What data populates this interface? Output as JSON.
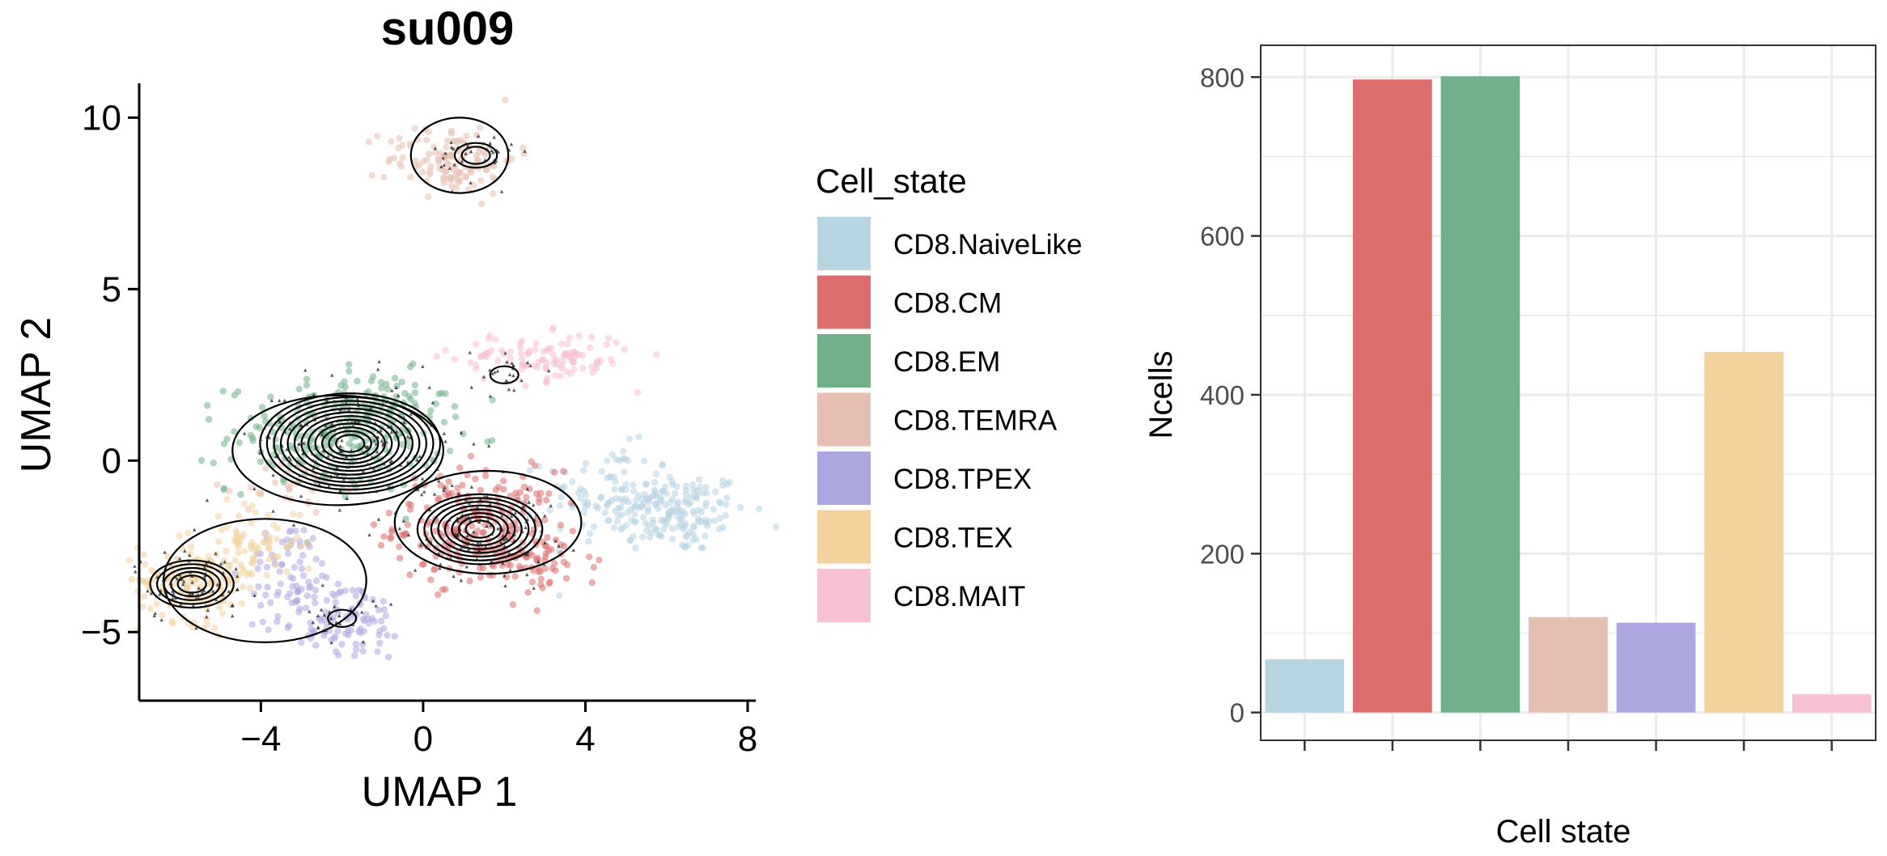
{
  "chart_data": [
    {
      "type": "scatter",
      "title": "su009",
      "xlabel": "UMAP 1",
      "ylabel": "UMAP 2",
      "xlim": [
        -7,
        8.2
      ],
      "ylim": [
        -7,
        11
      ],
      "xticks": [
        -4,
        0,
        4,
        8
      ],
      "xtick_labels": [
        "−4",
        "0",
        "4",
        "8"
      ],
      "yticks": [
        -5,
        0,
        5,
        10
      ],
      "ytick_labels": [
        "−5",
        "0",
        "5",
        "10"
      ],
      "grid": false,
      "legend": {
        "title": "Cell_state",
        "position": "right",
        "entries": [
          "CD8.NaiveLike",
          "CD8.CM",
          "CD8.EM",
          "CD8.TEMRA",
          "CD8.TPEX",
          "CD8.TEX",
          "CD8.MAIT"
        ]
      },
      "overlays": [
        "density-contours",
        "query-cell-triangles"
      ],
      "series": [
        {
          "name": "CD8.NaiveLike",
          "color": "#b7d4e1",
          "clusters": [
            {
              "cx": 6.2,
              "cy": -1.5,
              "sx": 0.9,
              "sy": 0.6,
              "n": 160
            },
            {
              "cx": 4.6,
              "cy": -1.0,
              "sx": 0.8,
              "sy": 0.7,
              "n": 90
            }
          ]
        },
        {
          "name": "CD8.CM",
          "color": "#dc6e6e",
          "clusters": [
            {
              "cx": 1.3,
              "cy": -1.9,
              "sx": 1.0,
              "sy": 0.8,
              "n": 220
            },
            {
              "cx": 2.8,
              "cy": -3.0,
              "sx": 0.8,
              "sy": 0.5,
              "n": 60
            }
          ]
        },
        {
          "name": "CD8.EM",
          "color": "#6fb088",
          "clusters": [
            {
              "cx": -2.2,
              "cy": 0.7,
              "sx": 1.3,
              "sy": 0.8,
              "n": 230
            },
            {
              "cx": -1.0,
              "cy": 1.6,
              "sx": 0.8,
              "sy": 0.5,
              "n": 60
            }
          ]
        },
        {
          "name": "CD8.TEMRA",
          "color": "#e5bfb1",
          "clusters": [
            {
              "cx": 0.7,
              "cy": 8.8,
              "sx": 0.8,
              "sy": 0.5,
              "n": 130
            },
            {
              "cx": -3.2,
              "cy": -0.8,
              "sx": 0.6,
              "sy": 0.4,
              "n": 30
            }
          ]
        },
        {
          "name": "CD8.TPEX",
          "color": "#ada7e0",
          "clusters": [
            {
              "cx": -2.0,
              "cy": -4.6,
              "sx": 0.8,
              "sy": 0.6,
              "n": 110
            },
            {
              "cx": -3.3,
              "cy": -3.2,
              "sx": 0.5,
              "sy": 0.7,
              "n": 60
            }
          ]
        },
        {
          "name": "CD8.TEX",
          "color": "#f3d29e",
          "clusters": [
            {
              "cx": -5.6,
              "cy": -3.5,
              "sx": 0.7,
              "sy": 0.6,
              "n": 150
            },
            {
              "cx": -4.2,
              "cy": -2.4,
              "sx": 0.6,
              "sy": 0.6,
              "n": 70
            }
          ]
        },
        {
          "name": "CD8.MAIT",
          "color": "#f8c0d3",
          "clusters": [
            {
              "cx": 3.0,
              "cy": 3.0,
              "sx": 1.1,
              "sy": 0.35,
              "n": 110
            }
          ]
        }
      ],
      "contour_centers": [
        {
          "x": -1.8,
          "y": 0.5,
          "levels": 12
        },
        {
          "x": 1.4,
          "y": -2.0,
          "levels": 8
        },
        {
          "x": -5.7,
          "y": -3.6,
          "levels": 5
        },
        {
          "x": 1.3,
          "y": 8.9,
          "levels": 2
        },
        {
          "x": 2.0,
          "y": 2.5,
          "levels": 1
        },
        {
          "x": -2.0,
          "y": -4.6,
          "levels": 1
        }
      ]
    },
    {
      "type": "bar",
      "title": "",
      "xlabel": "Cell state",
      "ylabel": "Ncells",
      "ylim": [
        -35,
        840
      ],
      "yticks": [
        0,
        200,
        400,
        600,
        800
      ],
      "ytick_labels": [
        "0",
        "200",
        "400",
        "600",
        "800"
      ],
      "grid": true,
      "categories": [
        "CD8.NaiveLike",
        "CD8.CM",
        "CD8.EM",
        "CD8.TEMRA",
        "CD8.TPEX",
        "CD8.TEX",
        "CD8.MAIT"
      ],
      "values": [
        67,
        797,
        801,
        120,
        113,
        454,
        23
      ],
      "colors": [
        "#b7d4e1",
        "#dc6e6e",
        "#6fb088",
        "#e5bfb1",
        "#ada7e0",
        "#f3d29e",
        "#f8c0d3"
      ],
      "show_category_labels": false
    }
  ]
}
